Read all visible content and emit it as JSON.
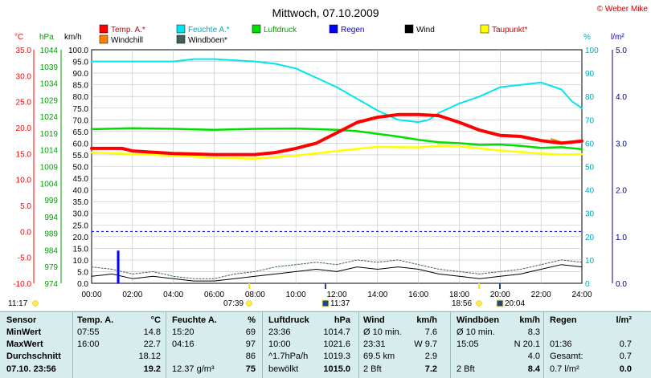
{
  "title": "Mittwoch, 07.10.2009",
  "copyright": "© Weber Mike",
  "colors": {
    "temp": "#ff0000",
    "humidity": "#00e5ee",
    "pressure": "#00dd00",
    "rain": "#0000ff",
    "wind": "#000000",
    "dewpoint": "#ffff00",
    "windchill": "#ff7f00",
    "gust": "#406060",
    "table_bg": "#d7ecec"
  },
  "legend": [
    {
      "label": "Temp. A.*",
      "color": "#ff0000"
    },
    {
      "label": "Feuchte A.*",
      "color": "#00e5ee"
    },
    {
      "label": "Luftdruck",
      "color": "#00dd00"
    },
    {
      "label": "Regen",
      "color": "#0000ff"
    },
    {
      "label": "Wind",
      "color": "#000000"
    },
    {
      "label": "Taupunkt*",
      "color": "#ffff00"
    },
    {
      "label": "Windchill",
      "color": "#ff7f00"
    },
    {
      "label": "Windböen*",
      "color": "#406060"
    }
  ],
  "axes": {
    "unit_c": "°C",
    "unit_hpa": "hPa",
    "unit_kmh": "km/h",
    "unit_pct": "%",
    "unit_lm2": "l/m²",
    "temp_ticks": [
      "35.0",
      "30.0",
      "25.0",
      "20.0",
      "15.0",
      "10.0",
      "5.0",
      "0.0",
      "-5.0",
      "-10.0"
    ],
    "hpa_ticks": [
      "1044",
      "1039",
      "1034",
      "1029",
      "1024",
      "1019",
      "1014",
      "1009",
      "1004",
      "999",
      "994",
      "989",
      "984",
      "979",
      "974"
    ],
    "kmh_ticks": [
      "100.0",
      "95.0",
      "90.0",
      "85.0",
      "80.0",
      "75.0",
      "70.0",
      "65.0",
      "60.0",
      "55.0",
      "50.0",
      "45.0",
      "40.0",
      "35.0",
      "30.0",
      "25.0",
      "20.0",
      "15.0",
      "10.0",
      "5.0",
      "0.0"
    ],
    "pct_ticks": [
      "100",
      "90",
      "80",
      "70",
      "60",
      "50",
      "40",
      "30",
      "20",
      "10",
      "0"
    ],
    "rain_ticks": [
      "5.0",
      "4.0",
      "3.0",
      "2.0",
      "1.0",
      "0.0"
    ],
    "time_ticks": [
      "00:00",
      "02:00",
      "04:00",
      "06:00",
      "08:00",
      "10:00",
      "12:00",
      "14:00",
      "16:00",
      "18:00",
      "20:00",
      "22:00",
      "24:00"
    ]
  },
  "sun_moon": {
    "moonrise": "11:17",
    "sunrise": "07:39",
    "moonset": "11:37",
    "sunset": "18:56",
    "newmoon": "20:04"
  },
  "chart_data": {
    "type": "line",
    "title": "Mittwoch, 07.10.2009",
    "x_unit": "hour of day",
    "xlim": [
      0,
      24
    ],
    "series": [
      {
        "name": "Temp. A.*",
        "axis": "°C",
        "ylim": [
          -10,
          35
        ],
        "x": [
          0,
          1.5,
          2,
          4,
          6,
          8,
          9,
          10,
          11,
          12,
          13,
          14,
          15,
          16,
          17,
          18,
          19,
          20,
          21,
          22,
          23,
          24
        ],
        "values": [
          16.0,
          16.0,
          15.5,
          15.0,
          14.8,
          14.8,
          15.2,
          16.0,
          17.0,
          19.0,
          21.0,
          22.0,
          22.5,
          22.5,
          22.3,
          21.0,
          19.5,
          18.5,
          18.3,
          17.5,
          17.0,
          17.4
        ]
      },
      {
        "name": "Feuchte A.*",
        "axis": "%",
        "ylim": [
          0,
          100
        ],
        "x": [
          0,
          2,
          4,
          5,
          6,
          8,
          9,
          10,
          11,
          12,
          13,
          14,
          15,
          16,
          16.5,
          17,
          18,
          19,
          20,
          21,
          22,
          23,
          23.5,
          24
        ],
        "values": [
          95,
          95,
          95,
          96,
          96,
          95,
          94,
          92,
          88,
          84,
          79,
          74,
          70,
          69,
          70,
          73,
          77,
          80,
          84,
          85,
          86,
          83,
          78,
          75
        ]
      },
      {
        "name": "Luftdruck",
        "axis": "hPa",
        "ylim": [
          974,
          1044
        ],
        "x": [
          0,
          2,
          4,
          6,
          8,
          10,
          12,
          13,
          14,
          15,
          16,
          17,
          18,
          19,
          20,
          21,
          22,
          23,
          24
        ],
        "values": [
          1020.2,
          1020.5,
          1020.3,
          1020.0,
          1020.3,
          1020.4,
          1020.0,
          1019.6,
          1018.8,
          1018.0,
          1017.0,
          1016.3,
          1016.0,
          1015.5,
          1015.6,
          1015.2,
          1014.6,
          1014.8,
          1014.2
        ]
      },
      {
        "name": "Taupunkt*",
        "axis": "°C",
        "ylim": [
          -10,
          35
        ],
        "x": [
          0,
          2,
          4,
          6,
          8,
          10,
          12,
          14,
          16,
          17,
          18,
          19,
          20,
          21,
          22,
          23,
          24
        ],
        "values": [
          15.2,
          14.9,
          14.6,
          14.2,
          14.0,
          14.6,
          15.5,
          16.3,
          16.2,
          16.5,
          16.4,
          16.0,
          15.6,
          15.3,
          15.0,
          14.8,
          14.9
        ]
      },
      {
        "name": "Windchill",
        "axis": "°C",
        "ylim": [
          -10,
          35
        ],
        "x": [
          22.5,
          23,
          23.5
        ],
        "values": [
          17.8,
          17.2,
          17.0
        ]
      },
      {
        "name": "Wind",
        "axis": "km/h",
        "ylim": [
          0,
          100
        ],
        "x": [
          0,
          1,
          2,
          3,
          4,
          5,
          6,
          7,
          8,
          9,
          10,
          11,
          12,
          13,
          14,
          15,
          16,
          17,
          18,
          19,
          20,
          21,
          22,
          23,
          24
        ],
        "values": [
          3,
          4,
          2,
          3,
          2,
          1,
          1,
          2,
          3,
          4,
          5,
          6,
          5,
          7,
          6,
          7,
          6,
          4,
          3,
          2,
          3,
          4,
          6,
          8,
          7
        ]
      },
      {
        "name": "Windböen*",
        "axis": "km/h",
        "ylim": [
          0,
          100
        ],
        "x": [
          0,
          1,
          2,
          3,
          4,
          5,
          6,
          7,
          8,
          9,
          10,
          11,
          12,
          13,
          14,
          15,
          16,
          17,
          18,
          19,
          20,
          21,
          22,
          23,
          24
        ],
        "values": [
          7,
          6,
          4,
          5,
          3,
          2,
          2,
          4,
          5,
          7,
          8,
          9,
          8,
          10,
          9,
          10,
          8,
          6,
          5,
          4,
          5,
          6,
          8,
          10,
          9
        ]
      },
      {
        "name": "Regen",
        "axis": "l/m²",
        "ylim": [
          0,
          5
        ],
        "x": [
          1.3
        ],
        "values": [
          0.7
        ]
      }
    ]
  },
  "table": {
    "headers": [
      "Sensor",
      "Temp. A.",
      "°C",
      "Feuchte A.",
      "%",
      "Luftdruck",
      "hPa",
      "Wind",
      "km/h",
      "Windböen",
      "km/h",
      "Regen",
      "l/m²"
    ],
    "rows": [
      [
        "MinWert",
        "07:55",
        "14.8",
        "15:20",
        "69",
        "23:36",
        "1014.7",
        "Ø 10 min.",
        "7.6",
        "Ø 10 min.",
        "8.3",
        "",
        ""
      ],
      [
        "MaxWert",
        "16:00",
        "22.7",
        "04:16",
        "97",
        "10:00",
        "1021.6",
        "23:31",
        "W 9.7",
        "15:05",
        "N 20.1",
        "01:36",
        "0.7"
      ],
      [
        "Durchschnitt",
        "",
        "18.12",
        "",
        "86",
        "^1.7hPa/h",
        "1019.3",
        "69.5 km",
        "2.9",
        "",
        "4.0",
        "Gesamt:",
        "0.7"
      ],
      [
        "07.10. 23:56",
        "",
        "19.2",
        "12.37 g/m³",
        "75",
        "bewölkt",
        "1015.0",
        "2 Bft",
        "7.2",
        "2 Bft",
        "8.4",
        "0.7 l/m²",
        "0.0"
      ]
    ]
  }
}
